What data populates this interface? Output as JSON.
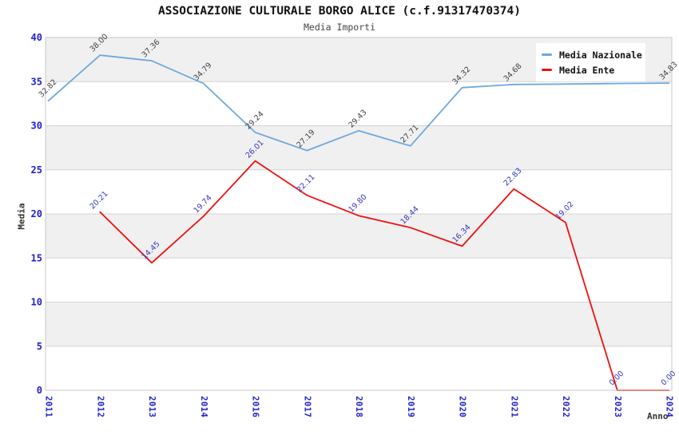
{
  "title": "ASSOCIAZIONE CULTURALE BORGO ALICE (c.f.91317470374)",
  "subtitle": "Media Importi",
  "colors": {
    "tick_label": "#2121cc",
    "band_fill": "#f0f0f0",
    "gridline": "#d4d4d4",
    "plot_border": "#c8c8c8",
    "axis_title": "#333333"
  },
  "chart_data": {
    "type": "line",
    "title": "ASSOCIAZIONE CULTURALE BORGO ALICE (c.f.91317470374)",
    "subtitle": "Media Importi",
    "xlabel": "Anno",
    "ylabel": "Media",
    "ylim": [
      0,
      40
    ],
    "ytick_step": 5,
    "yticks": [
      "0",
      "5",
      "10",
      "15",
      "20",
      "25",
      "30",
      "35",
      "40"
    ],
    "grid": true,
    "banded_background": true,
    "legend_position": "top-right",
    "categories": [
      "2011",
      "2012",
      "2013",
      "2014",
      "2016",
      "2017",
      "2018",
      "2019",
      "2020",
      "2021",
      "2022",
      "2023",
      "2024"
    ],
    "series": [
      {
        "name": "Media Nazionale",
        "color": "#6fa8dc",
        "label_color": "#3f3f3f",
        "values": [
          32.82,
          38.0,
          37.36,
          34.79,
          29.24,
          27.19,
          29.43,
          27.71,
          34.32,
          34.68,
          34.72,
          34.79,
          34.83
        ],
        "labels": [
          "32.82",
          "38.00",
          "37.36",
          "34.79",
          "29.24",
          "27.19",
          "29.43",
          "27.71",
          "34.32",
          "34.68",
          "",
          "",
          "34.83"
        ]
      },
      {
        "name": "Media Ente",
        "color": "#ee1111",
        "label_color": "#3535c0",
        "values": [
          null,
          20.21,
          14.45,
          19.74,
          26.01,
          22.11,
          19.8,
          18.44,
          16.34,
          22.83,
          19.02,
          0.0,
          0.0
        ],
        "labels": [
          "",
          "20.21",
          "14.45",
          "19.74",
          "26.01",
          "22.11",
          "19.80",
          "18.44",
          "16.34",
          "22.83",
          "19.02",
          "0.00",
          "0.00"
        ]
      }
    ]
  }
}
